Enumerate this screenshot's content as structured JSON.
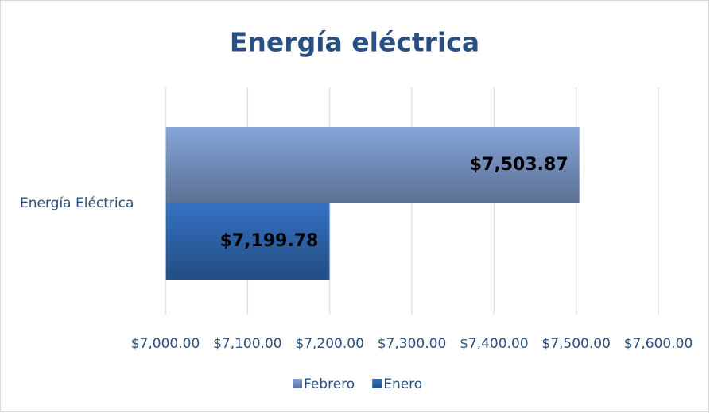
{
  "chart_data": {
    "type": "bar",
    "orientation": "horizontal",
    "title": "Energía eléctrica",
    "categories": [
      "Energía Eléctrica"
    ],
    "series": [
      {
        "name": "Febrero",
        "color": "#86a5d9",
        "values": [
          7503.87
        ],
        "value_labels": [
          "$7,503.87"
        ]
      },
      {
        "name": "Enero",
        "color": "#3471c2",
        "values": [
          7199.78
        ],
        "value_labels": [
          "$7,199.78"
        ]
      }
    ],
    "xlim": [
      7000,
      7600
    ],
    "xticks": [
      {
        "value": 7000,
        "label": "$7,000.00"
      },
      {
        "value": 7100,
        "label": "$7,100.00"
      },
      {
        "value": 7200,
        "label": "$7,200.00"
      },
      {
        "value": 7300,
        "label": "$7,300.00"
      },
      {
        "value": 7400,
        "label": "$7,400.00"
      },
      {
        "value": 7500,
        "label": "$7,500.00"
      },
      {
        "value": 7600,
        "label": "$7,600.00"
      }
    ],
    "grid": true,
    "legend": "bottom"
  }
}
